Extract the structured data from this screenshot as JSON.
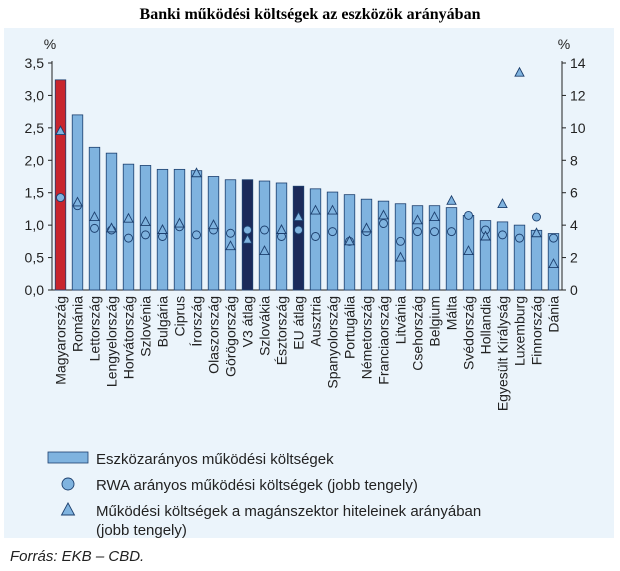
{
  "title": "Banki működési költségek az eszközök arányában",
  "source": "Forrás: EKB – CBD.",
  "colors": {
    "bar": "#7fb3df",
    "bar_border": "#1c3f6e",
    "highlight_hu": "#c8252d",
    "highlight_avg": "#1b2a5a",
    "marker_fill": "#7fb3df",
    "background": "#ebf4fb"
  },
  "chart_data": {
    "type": "bar",
    "title": "Banki működési költségek az eszközök arányában",
    "left_axis": {
      "unit": "%",
      "ylim": [
        0,
        3.5
      ],
      "ticks": [
        "0,0",
        "0,5",
        "1,0",
        "1,5",
        "2,0",
        "2,5",
        "3,0",
        "3,5"
      ]
    },
    "right_axis": {
      "unit": "%",
      "ylim": [
        0,
        14
      ],
      "ticks": [
        "0",
        "2",
        "4",
        "6",
        "8",
        "10",
        "12",
        "14"
      ]
    },
    "grid": false,
    "legend_position": "bottom",
    "categories": [
      "Magyarország",
      "Románia",
      "Lettország",
      "Lengyelország",
      "Horvátország",
      "Szlovénia",
      "Bulgária",
      "Ciprus",
      "Írország",
      "Olaszország",
      "Görögország",
      "V3 átlag",
      "Szlovákia",
      "Észtország",
      "EU átlag",
      "Ausztria",
      "Spanyolország",
      "Portugália",
      "Németország",
      "Franciaország",
      "Litvánia",
      "Csehország",
      "Belgium",
      "Málta",
      "Svédország",
      "Hollandia",
      "Egyesült Királyság",
      "Luxemburg",
      "Finnország",
      "Dánia"
    ],
    "highlight": {
      "Magyarország": "hu",
      "V3 átlag": "avg",
      "EU átlag": "avg"
    },
    "series": [
      {
        "name": "Eszközarányos működési költségek",
        "axis": "left",
        "marker": "bar",
        "values": [
          3.24,
          2.7,
          2.2,
          2.11,
          1.94,
          1.92,
          1.86,
          1.86,
          1.84,
          1.75,
          1.7,
          1.7,
          1.68,
          1.65,
          1.6,
          1.56,
          1.51,
          1.47,
          1.4,
          1.37,
          1.33,
          1.3,
          1.3,
          1.27,
          1.15,
          1.07,
          1.05,
          1.0,
          0.92,
          0.87
        ]
      },
      {
        "name": "RWA arányos működési költségek (jobb tengely)",
        "axis": "right",
        "marker": "circle",
        "values": [
          5.7,
          5.2,
          3.8,
          3.7,
          3.2,
          3.4,
          3.3,
          3.9,
          3.4,
          3.7,
          3.5,
          3.7,
          3.7,
          3.3,
          3.7,
          3.3,
          3.6,
          3.0,
          3.6,
          4.1,
          3.0,
          3.6,
          3.6,
          3.6,
          4.6,
          3.7,
          3.4,
          3.2,
          4.5,
          3.2
        ]
      },
      {
        "name": "Működési költségek a magánszektor hiteleinek arányában (jobb tengely)",
        "axis": "right",
        "marker": "triangle",
        "values": [
          9.8,
          5.4,
          4.5,
          3.8,
          4.4,
          4.2,
          3.7,
          4.1,
          7.2,
          4.0,
          2.7,
          3.1,
          2.4,
          3.7,
          4.5,
          4.9,
          4.9,
          3.0,
          3.8,
          4.6,
          2.0,
          4.3,
          4.5,
          5.5,
          2.4,
          3.3,
          5.3,
          13.4,
          3.5,
          1.6
        ]
      }
    ]
  }
}
